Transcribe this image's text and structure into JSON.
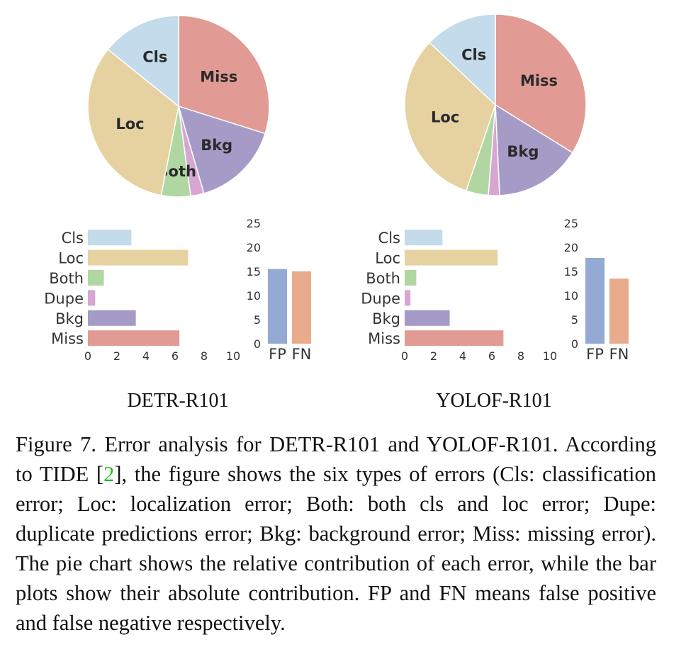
{
  "chart_data": [
    {
      "id": "detr",
      "title": "DETR-R101",
      "pie": {
        "type": "pie",
        "slices": [
          {
            "label": "Miss",
            "value": 6.3,
            "color": "#e19b94"
          },
          {
            "label": "Bkg",
            "value": 3.3,
            "color": "#a69bc6"
          },
          {
            "label": "",
            "value": 0.5,
            "color": "#d7a6d3"
          },
          {
            "label": "Both",
            "value": 1.1,
            "color": "#b0d7a2"
          },
          {
            "label": "Loc",
            "value": 6.9,
            "color": "#e6d1a1"
          },
          {
            "label": "Cls",
            "value": 3.0,
            "color": "#c3dbea"
          }
        ]
      },
      "error_bars": {
        "type": "bar",
        "orientation": "horizontal",
        "categories": [
          "Cls",
          "Loc",
          "Both",
          "Dupe",
          "Bkg",
          "Miss"
        ],
        "values": [
          3.0,
          6.9,
          1.1,
          0.5,
          3.3,
          6.3
        ],
        "colors": [
          "#c3dbea",
          "#e6d1a1",
          "#b0d7a2",
          "#d7a6d3",
          "#a69bc6",
          "#e19b94"
        ],
        "xlim": [
          0,
          10
        ],
        "xticks": [
          "0",
          "2",
          "4",
          "6",
          "8",
          "10"
        ]
      },
      "fpfn_bars": {
        "type": "bar",
        "categories": [
          "FP",
          "FN"
        ],
        "values": [
          15.5,
          15.0
        ],
        "colors": [
          "#94a9d3",
          "#e8ac8c"
        ],
        "ylim": [
          0,
          25
        ],
        "yticks": [
          "0",
          "5",
          "10",
          "15",
          "20",
          "25"
        ]
      }
    },
    {
      "id": "yolof",
      "title": "YOLOF-R101",
      "pie": {
        "type": "pie",
        "slices": [
          {
            "label": "Miss",
            "value": 6.8,
            "color": "#e19b94"
          },
          {
            "label": "Bkg",
            "value": 3.1,
            "color": "#a69bc6"
          },
          {
            "label": "",
            "value": 0.4,
            "color": "#d7a6d3"
          },
          {
            "label": "",
            "value": 0.8,
            "color": "#b0d7a2"
          },
          {
            "label": "Loc",
            "value": 6.4,
            "color": "#e6d1a1"
          },
          {
            "label": "Cls",
            "value": 2.6,
            "color": "#c3dbea"
          }
        ]
      },
      "error_bars": {
        "type": "bar",
        "orientation": "horizontal",
        "categories": [
          "Cls",
          "Loc",
          "Both",
          "Dupe",
          "Bkg",
          "Miss"
        ],
        "values": [
          2.6,
          6.4,
          0.8,
          0.4,
          3.1,
          6.8
        ],
        "colors": [
          "#c3dbea",
          "#e6d1a1",
          "#b0d7a2",
          "#d7a6d3",
          "#a69bc6",
          "#e19b94"
        ],
        "xlim": [
          0,
          10
        ],
        "xticks": [
          "0",
          "2",
          "4",
          "6",
          "8",
          "10"
        ]
      },
      "fpfn_bars": {
        "type": "bar",
        "categories": [
          "FP",
          "FN"
        ],
        "values": [
          17.8,
          13.5
        ],
        "colors": [
          "#94a9d3",
          "#e8ac8c"
        ],
        "ylim": [
          0,
          25
        ],
        "yticks": [
          "0",
          "5",
          "10",
          "15",
          "20",
          "25"
        ]
      }
    }
  ],
  "caption": {
    "label": "Figure 7. Error analysis for DETR-R101 and YOLOF-R101. According to TIDE [",
    "cite": "2",
    "rest": "], the figure shows the six types of errors (Cls: classification error; Loc: localization error; Both: both cls and loc error; Dupe: duplicate predictions error; Bkg: background error; Miss: missing error). The pie chart shows the relative contribution of each error, while the bar plots show their absolute contribution. FP and FN means false positive and false negative respectively."
  }
}
